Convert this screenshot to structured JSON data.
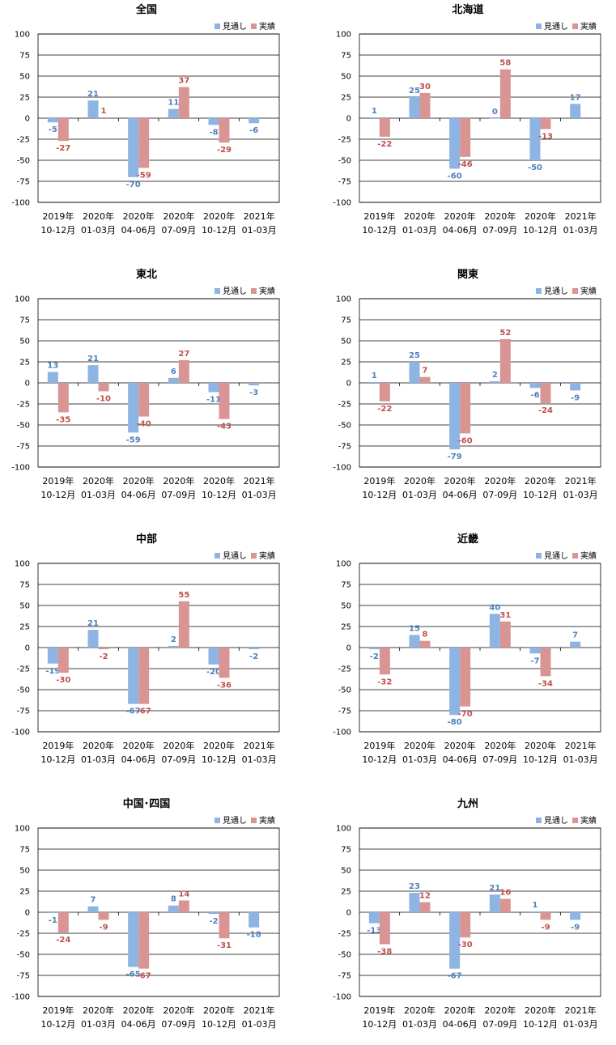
{
  "legend": {
    "forecast": "見通し",
    "actual": "実績"
  },
  "colors": {
    "forecast": "#8EB4E3",
    "actual": "#D99594",
    "forecast_label": "#4F81BD",
    "actual_label": "#C0504D",
    "grid": "#000000"
  },
  "categories": [
    [
      "2019年",
      "10-12月"
    ],
    [
      "2020年",
      "01-03月"
    ],
    [
      "2020年",
      "04-06月"
    ],
    [
      "2020年",
      "07-09月"
    ],
    [
      "2020年",
      "10-12月"
    ],
    [
      "2021年",
      "01-03月"
    ]
  ],
  "y_ticks": [
    "100",
    "75",
    "50",
    "25",
    "0",
    "-25",
    "-50",
    "-75",
    "-100"
  ],
  "chart_data": [
    {
      "type": "bar",
      "title": "全国",
      "ylim": [
        -100,
        100
      ],
      "series": [
        {
          "name": "見通し",
          "values": [
            -5,
            21,
            -70,
            11,
            -8,
            -6
          ]
        },
        {
          "name": "実績",
          "values": [
            -27,
            1,
            -59,
            37,
            -29,
            null
          ]
        }
      ]
    },
    {
      "type": "bar",
      "title": "北海道",
      "ylim": [
        -100,
        100
      ],
      "series": [
        {
          "name": "見通し",
          "values": [
            1,
            25,
            -60,
            0,
            -50,
            17
          ]
        },
        {
          "name": "実績",
          "values": [
            -22,
            30,
            -46,
            58,
            -13,
            null
          ]
        }
      ]
    },
    {
      "type": "bar",
      "title": "東北",
      "ylim": [
        -100,
        100
      ],
      "series": [
        {
          "name": "見通し",
          "values": [
            13,
            21,
            -59,
            6,
            -11,
            -3
          ]
        },
        {
          "name": "実績",
          "values": [
            -35,
            -10,
            -40,
            27,
            -43,
            null
          ]
        }
      ]
    },
    {
      "type": "bar",
      "title": "関東",
      "ylim": [
        -100,
        100
      ],
      "series": [
        {
          "name": "見通し",
          "values": [
            1,
            25,
            -79,
            2,
            -6,
            -9
          ]
        },
        {
          "name": "実績",
          "values": [
            -22,
            7,
            -60,
            52,
            -24,
            null
          ]
        }
      ]
    },
    {
      "type": "bar",
      "title": "中部",
      "ylim": [
        -100,
        100
      ],
      "series": [
        {
          "name": "見通し",
          "values": [
            -19,
            21,
            -67,
            2,
            -20,
            -2
          ]
        },
        {
          "name": "実績",
          "values": [
            -30,
            -2,
            -67,
            55,
            -36,
            null
          ]
        }
      ]
    },
    {
      "type": "bar",
      "title": "近畿",
      "ylim": [
        -100,
        100
      ],
      "series": [
        {
          "name": "見通し",
          "values": [
            -2,
            15,
            -80,
            40,
            -7,
            7
          ]
        },
        {
          "name": "実績",
          "values": [
            -32,
            8,
            -70,
            31,
            -34,
            null
          ]
        }
      ]
    },
    {
      "type": "bar",
      "title": "中国･四国",
      "ylim": [
        -100,
        100
      ],
      "series": [
        {
          "name": "見通し",
          "values": [
            -1,
            7,
            -65,
            8,
            -2,
            -18
          ]
        },
        {
          "name": "実績",
          "values": [
            -24,
            -9,
            -67,
            14,
            -31,
            null
          ]
        }
      ]
    },
    {
      "type": "bar",
      "title": "九州",
      "ylim": [
        -100,
        100
      ],
      "series": [
        {
          "name": "見通し",
          "values": [
            -13,
            23,
            -67,
            21,
            1,
            -9
          ]
        },
        {
          "name": "実績",
          "values": [
            -38,
            12,
            -30,
            16,
            -9,
            null
          ]
        }
      ]
    }
  ]
}
